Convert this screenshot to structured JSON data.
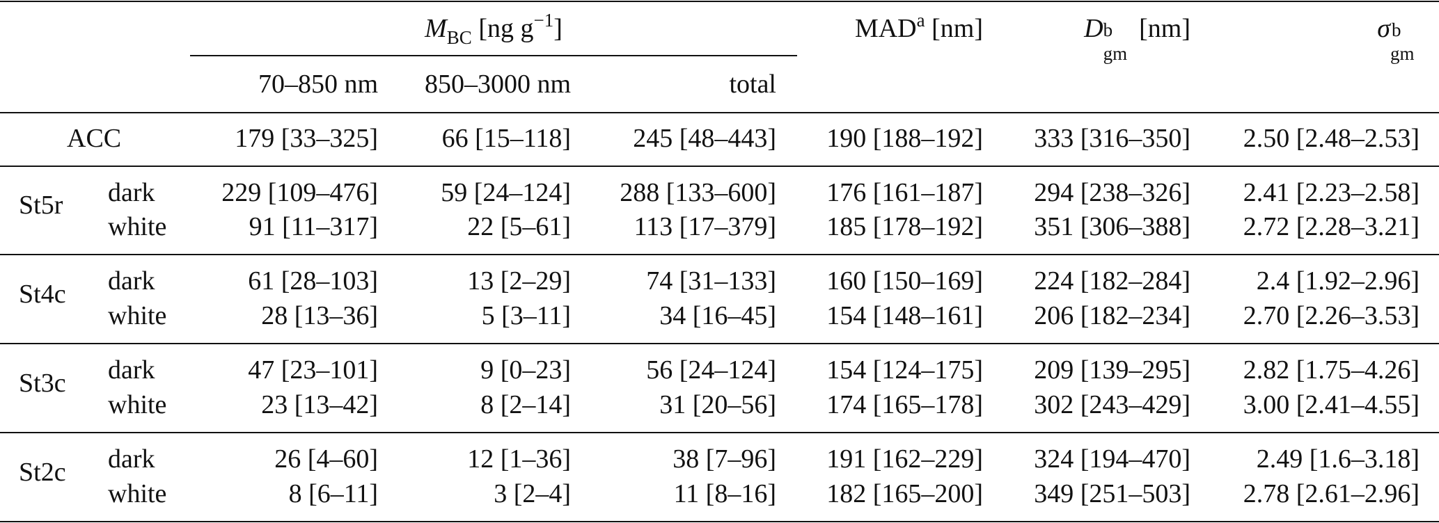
{
  "header": {
    "mbc": {
      "symbol": "M",
      "subscript": "BC",
      "unit_open": "[ng g",
      "unit_exp": "−1",
      "unit_close": "]"
    },
    "mad": {
      "label": "MAD",
      "sup": "a",
      "unit": "[nm]"
    },
    "dgm": {
      "symbol": "D",
      "sub": "gm",
      "sup": "b",
      "unit": "[nm]"
    },
    "sgm": {
      "symbol": "σ",
      "sub": "gm",
      "sup": "b"
    },
    "sub_cols": [
      "70–850 nm",
      "850–3000 nm",
      "total"
    ]
  },
  "acc": {
    "label": "ACC",
    "values": [
      "179 [33–325]",
      "66 [15–118]",
      "245 [48–443]",
      "190 [188–192]",
      "333 [316–350]",
      "2.50 [2.48–2.53]"
    ]
  },
  "groups": [
    {
      "site": "St5r",
      "rows": [
        {
          "type": "dark",
          "values": [
            "229 [109–476]",
            "59 [24–124]",
            "288 [133–600]",
            "176 [161–187]",
            "294 [238–326]",
            "2.41 [2.23–2.58]"
          ]
        },
        {
          "type": "white",
          "values": [
            "91 [11–317]",
            "22 [5–61]",
            "113 [17–379]",
            "185 [178–192]",
            "351 [306–388]",
            "2.72 [2.28–3.21]"
          ]
        }
      ]
    },
    {
      "site": "St4c",
      "rows": [
        {
          "type": "dark",
          "values": [
            "61 [28–103]",
            "13 [2–29]",
            "74 [31–133]",
            "160 [150–169]",
            "224 [182–284]",
            "2.4 [1.92–2.96]"
          ]
        },
        {
          "type": "white",
          "values": [
            "28 [13–36]",
            "5 [3–11]",
            "34 [16–45]",
            "154 [148–161]",
            "206 [182–234]",
            "2.70 [2.26–3.53]"
          ]
        }
      ]
    },
    {
      "site": "St3c",
      "rows": [
        {
          "type": "dark",
          "values": [
            "47 [23–101]",
            "9 [0–23]",
            "56 [24–124]",
            "154 [124–175]",
            "209 [139–295]",
            "2.82 [1.75–4.26]"
          ]
        },
        {
          "type": "white",
          "values": [
            "23 [13–42]",
            "8 [2–14]",
            "31 [20–56]",
            "174 [165–178]",
            "302 [243–429]",
            "3.00 [2.41–4.55]"
          ]
        }
      ]
    },
    {
      "site": "St2c",
      "rows": [
        {
          "type": "dark",
          "values": [
            "26 [4–60]",
            "12 [1–36]",
            "38 [7–96]",
            "191 [162–229]",
            "324 [194–470]",
            "2.49 [1.6–3.18]"
          ]
        },
        {
          "type": "white",
          "values": [
            "8 [6–11]",
            "3 [2–4]",
            "11 [8–16]",
            "182 [165–200]",
            "349 [251–503]",
            "2.78 [2.61–2.96]"
          ]
        }
      ]
    }
  ]
}
